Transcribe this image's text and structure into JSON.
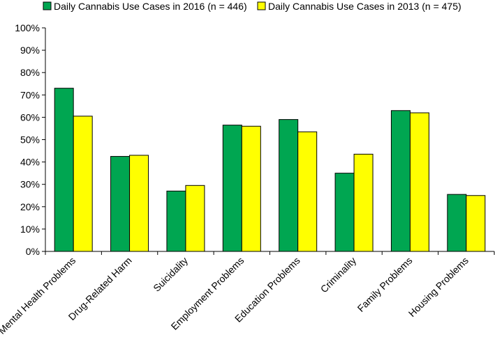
{
  "chart_data": {
    "type": "bar",
    "title": "",
    "xlabel": "",
    "ylabel": "",
    "categories": [
      "Mental Health Problems",
      "Drug-Related Harm",
      "Suicidality",
      "Employment Problems",
      "Education Problems",
      "Criminality",
      "Family Problems",
      "Housing Problems"
    ],
    "series": [
      {
        "name": "Daily Cannabis Use Cases in 2016 (n = 446)",
        "color": "#00a651",
        "values": [
          73,
          42.5,
          27,
          56.5,
          59,
          35,
          63,
          25.5
        ]
      },
      {
        "name": "Daily Cannabis Use Cases in 2013 (n = 475)",
        "color": "#ffff00",
        "values": [
          60.5,
          43,
          29.5,
          56,
          53.5,
          43.5,
          62,
          25
        ]
      }
    ],
    "ylim": [
      0,
      100
    ],
    "yticks": [
      "0%",
      "10%",
      "20%",
      "30%",
      "40%",
      "50%",
      "60%",
      "70%",
      "80%",
      "90%",
      "100%"
    ],
    "legend_position": "top",
    "grid": false
  }
}
